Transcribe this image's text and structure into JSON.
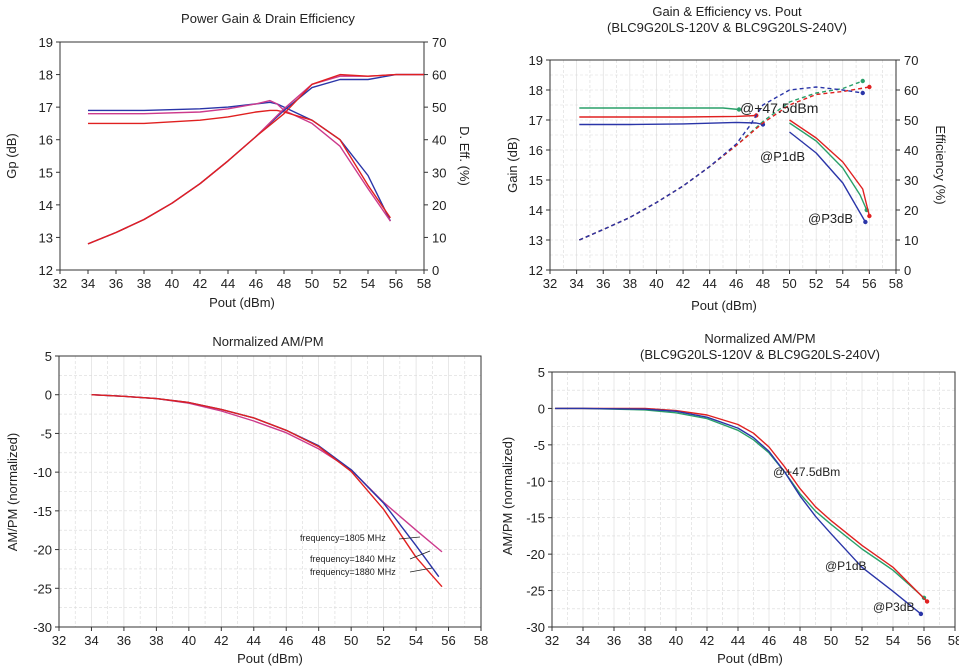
{
  "chart_data": [
    {
      "id": "p1",
      "type": "line",
      "title": "Power Gain & Drain Efficiency",
      "xlabel": "Pout (dBm)",
      "ylabel": "Gp (dB)",
      "y2label": "D. Eff. (%)",
      "xlim": [
        32,
        58
      ],
      "xticks": [
        32,
        34,
        36,
        38,
        40,
        42,
        44,
        46,
        48,
        50,
        52,
        54,
        56,
        58
      ],
      "ylim": [
        12,
        19
      ],
      "yticks": [
        12,
        13,
        14,
        15,
        16,
        17,
        18,
        19
      ],
      "y2lim": [
        0,
        70
      ],
      "y2ticks": [
        0,
        10,
        20,
        30,
        40,
        50,
        60,
        70
      ],
      "grid": false,
      "series": [
        {
          "axis": "left",
          "color": "#2a35a8",
          "x": [
            34,
            38,
            42,
            44,
            46,
            47,
            47.5,
            48,
            50,
            52,
            54,
            55.6
          ],
          "y": [
            16.9,
            16.9,
            16.95,
            17.0,
            17.1,
            17.15,
            17.1,
            17.0,
            16.6,
            16.0,
            14.9,
            13.5
          ]
        },
        {
          "axis": "left",
          "color": "#cc3a8c",
          "x": [
            34,
            38,
            42,
            44,
            46,
            47,
            47.5,
            48,
            50,
            52,
            54,
            55.6
          ],
          "y": [
            16.8,
            16.8,
            16.85,
            16.95,
            17.1,
            17.2,
            17.1,
            16.9,
            16.5,
            15.8,
            14.5,
            13.5
          ]
        },
        {
          "axis": "left",
          "color": "#e02020",
          "x": [
            34,
            38,
            42,
            44,
            46,
            47,
            47.5,
            48,
            50,
            52,
            54,
            55.6
          ],
          "y": [
            16.5,
            16.5,
            16.6,
            16.7,
            16.85,
            16.9,
            16.9,
            16.85,
            16.6,
            16.0,
            14.6,
            13.6
          ]
        },
        {
          "axis": "right",
          "color": "#2a35a8",
          "x": [
            34,
            36,
            38,
            40,
            42,
            44,
            46,
            48,
            50,
            52,
            54,
            56,
            58
          ],
          "y": [
            8,
            11.5,
            15.5,
            20.5,
            26.5,
            33.5,
            41,
            49,
            56,
            58.5,
            58.5,
            60,
            60
          ]
        },
        {
          "axis": "right",
          "color": "#cc3a8c",
          "x": [
            34,
            36,
            38,
            40,
            42,
            44,
            46,
            48,
            50,
            52,
            54,
            56,
            58
          ],
          "y": [
            8,
            11.5,
            15.5,
            20.5,
            26.5,
            33.5,
            41,
            49.5,
            57,
            59.5,
            59.5,
            60,
            60
          ]
        },
        {
          "axis": "right",
          "color": "#e02020",
          "x": [
            34,
            36,
            38,
            40,
            42,
            44,
            46,
            48,
            50,
            52,
            54,
            56,
            58
          ],
          "y": [
            8,
            11.5,
            15.5,
            20.5,
            26.5,
            33.5,
            41,
            48,
            57,
            60,
            59.5,
            60,
            60
          ]
        }
      ]
    },
    {
      "id": "p2",
      "type": "line",
      "title": "Gain & Efficiency vs. Pout",
      "subtitle": "(BLC9G20LS-120V & BLC9G20LS-240V)",
      "xlabel": "Pout (dBm)",
      "ylabel": "Gain (dB)",
      "y2label": "Efficiency (%)",
      "xlim": [
        32,
        58
      ],
      "xticks": [
        32,
        34,
        36,
        38,
        40,
        42,
        44,
        46,
        48,
        50,
        52,
        54,
        56,
        58
      ],
      "ylim": [
        12,
        19
      ],
      "yticks": [
        12,
        13,
        14,
        15,
        16,
        17,
        18,
        19
      ],
      "y2lim": [
        0,
        70
      ],
      "y2ticks": [
        0,
        10,
        20,
        30,
        40,
        50,
        60,
        70
      ],
      "grid": true,
      "annotations": [
        "@+47.5dBm",
        "@P1dB",
        "@P3dB"
      ],
      "series": [
        {
          "axis": "left",
          "color": "#2aa06a",
          "x": [
            34.2,
            38,
            42,
            45,
            46.2
          ],
          "y": [
            17.4,
            17.4,
            17.4,
            17.4,
            17.35
          ]
        },
        {
          "axis": "left",
          "color": "#e02020",
          "x": [
            34.2,
            38,
            42,
            46,
            47.5
          ],
          "y": [
            17.1,
            17.1,
            17.1,
            17.12,
            17.15
          ]
        },
        {
          "axis": "left",
          "color": "#2a35a8",
          "x": [
            34.2,
            38,
            42,
            46,
            47.5,
            48
          ],
          "y": [
            16.85,
            16.85,
            16.87,
            16.92,
            16.9,
            16.85
          ]
        },
        {
          "axis": "left",
          "color": "#2aa06a",
          "x": [
            50,
            52,
            54,
            55.3,
            55.8
          ],
          "y": [
            16.9,
            16.3,
            15.4,
            14.5,
            14.0
          ]
        },
        {
          "axis": "left",
          "color": "#e02020",
          "x": [
            50,
            52,
            54,
            55.5,
            56
          ],
          "y": [
            17.0,
            16.4,
            15.6,
            14.7,
            13.8
          ]
        },
        {
          "axis": "left",
          "color": "#2a35a8",
          "x": [
            50,
            52,
            54,
            55.7
          ],
          "y": [
            16.6,
            15.9,
            14.9,
            13.6
          ]
        },
        {
          "axis": "right",
          "color": "#2aa06a",
          "dash": true,
          "x": [
            34.2,
            36,
            38,
            40,
            42,
            44,
            46,
            48,
            50,
            52,
            54,
            55.5
          ],
          "y": [
            10,
            13.5,
            17.5,
            22.5,
            28,
            34.5,
            41.5,
            49.5,
            56,
            59,
            60.5,
            63
          ]
        },
        {
          "axis": "right",
          "color": "#e02020",
          "dash": true,
          "x": [
            34.2,
            36,
            38,
            40,
            42,
            44,
            46,
            48,
            50,
            52,
            54,
            56
          ],
          "y": [
            10,
            13.5,
            17.5,
            22.5,
            28,
            34.5,
            41.5,
            49,
            55,
            58.5,
            59.5,
            61
          ]
        },
        {
          "axis": "right",
          "color": "#2a35a8",
          "dash": true,
          "x": [
            34.2,
            36,
            38,
            40,
            42,
            44,
            46,
            47,
            48,
            50,
            52,
            54,
            55.5
          ],
          "y": [
            10,
            13.5,
            17.5,
            22.5,
            28,
            34.5,
            42,
            48,
            55,
            60,
            61,
            60,
            59
          ]
        }
      ]
    },
    {
      "id": "p3",
      "type": "line",
      "title": "Normalized AM/PM",
      "xlabel": "Pout (dBm)",
      "ylabel": "AM/PM (normalized)",
      "xlim": [
        32,
        58
      ],
      "xticks": [
        32,
        34,
        36,
        38,
        40,
        42,
        44,
        46,
        48,
        50,
        52,
        54,
        56,
        58
      ],
      "ylim": [
        -30,
        5
      ],
      "yticks": [
        -30,
        -25,
        -20,
        -15,
        -10,
        -5,
        0,
        5
      ],
      "grid": true,
      "annotations": [
        "frequency=1805 MHz",
        "frequency=1840 MHz",
        "frequency=1880 MHz"
      ],
      "series": [
        {
          "color": "#cc3a8c",
          "x": [
            34,
            36,
            38,
            40,
            42,
            44,
            46,
            48,
            50,
            52,
            54,
            55.6
          ],
          "y": [
            0,
            -0.2,
            -0.5,
            -1.1,
            -2.1,
            -3.4,
            -4.9,
            -7,
            -9.7,
            -13.9,
            -17.5,
            -20.3
          ]
        },
        {
          "color": "#2a35a8",
          "x": [
            34,
            36,
            38,
            40,
            42,
            44,
            46,
            48,
            50,
            52,
            54,
            55.4
          ],
          "y": [
            0,
            -0.2,
            -0.5,
            -1.0,
            -1.9,
            -3.0,
            -4.6,
            -6.6,
            -9.7,
            -14.0,
            -19.5,
            -23.5
          ]
        },
        {
          "color": "#e02020",
          "x": [
            34,
            36,
            38,
            40,
            42,
            44,
            46,
            48,
            50,
            52,
            54,
            55.6
          ],
          "y": [
            0,
            -0.2,
            -0.5,
            -1.0,
            -1.9,
            -3.0,
            -4.6,
            -6.7,
            -9.9,
            -14.8,
            -21.0,
            -24.8
          ]
        }
      ]
    },
    {
      "id": "p4",
      "type": "line",
      "title": "Normalized AM/PM",
      "subtitle": "(BLC9G20LS-120V & BLC9G20LS-240V)",
      "xlabel": "Pout (dBm)",
      "ylabel": "AM/PM (normalized)",
      "xlim": [
        32,
        58
      ],
      "xticks": [
        32,
        34,
        36,
        38,
        40,
        42,
        44,
        46,
        48,
        50,
        52,
        54,
        56,
        58
      ],
      "ylim": [
        -30,
        5
      ],
      "yticks": [
        -30,
        -25,
        -20,
        -15,
        -10,
        -5,
        0,
        5
      ],
      "grid": true,
      "annotations": [
        "@+47.5dBm",
        "@P1dB",
        "@P3dB"
      ],
      "series": [
        {
          "color": "#2aa06a",
          "x": [
            32.2,
            34,
            38,
            40,
            42,
            44,
            45,
            46,
            47,
            48,
            49,
            50,
            52,
            54,
            56
          ],
          "y": [
            0,
            0,
            -0.2,
            -0.6,
            -1.4,
            -3,
            -4.3,
            -6.1,
            -8.7,
            -11.7,
            -14.1,
            -15.9,
            -19.3,
            -22.2,
            -26.0
          ]
        },
        {
          "color": "#e02020",
          "x": [
            32.2,
            34,
            38,
            40,
            42,
            44,
            45,
            46,
            47,
            48,
            49,
            50,
            52,
            54,
            56.2
          ],
          "y": [
            0,
            0,
            0,
            -0.3,
            -0.9,
            -2.2,
            -3.4,
            -5.3,
            -8,
            -11,
            -13.5,
            -15.4,
            -18.8,
            -21.8,
            -26.5
          ]
        },
        {
          "color": "#2a35a8",
          "x": [
            32.2,
            34,
            38,
            40,
            42,
            44,
            45,
            46,
            47,
            48,
            49,
            50,
            52,
            54,
            55.8
          ],
          "y": [
            0,
            0,
            -0.1,
            -0.4,
            -1.2,
            -2.7,
            -4,
            -5.9,
            -8.7,
            -12,
            -14.8,
            -17.2,
            -21.8,
            -25.1,
            -28.2
          ]
        }
      ]
    }
  ]
}
